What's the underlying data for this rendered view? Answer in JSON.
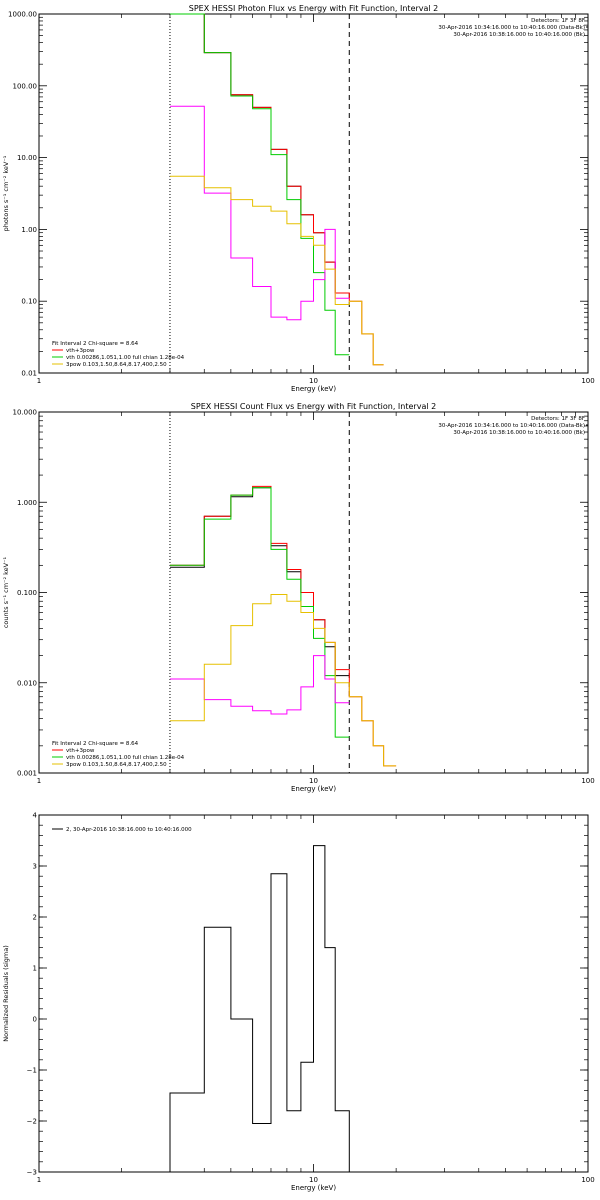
{
  "chart_data": [
    {
      "type": "line",
      "title": "SPEX HESSI Photon Flux vs Energy with Fit Function, Interval 2",
      "xlabel": "Energy (keV)",
      "ylabel": "photons s⁻¹ cm⁻² keV⁻¹",
      "xscale": "log",
      "yscale": "log",
      "xlim": [
        1,
        100
      ],
      "ylim": [
        0.01,
        1000
      ],
      "x_ticks": [
        1,
        10,
        100
      ],
      "x_tick_labels": [
        "1",
        "10",
        "100"
      ],
      "y_ticks": [
        0.01,
        0.1,
        1,
        10,
        100,
        1000
      ],
      "y_tick_labels": [
        "0.01",
        "0.10",
        "1.00",
        "10.00",
        "100.00",
        "1000.00"
      ],
      "top_right_text": [
        "Detectors: 1F 3F 8F",
        "30-Apr-2016 10:34:16.000 to 10:40:16.000 (Data-Bk)",
        "30-Apr-2016 10:38:16.000 to 10:40:16.000 (Bk)"
      ],
      "legend_header": "Fit Interval 2  Chi-square = 8.64",
      "legend": [
        "vth+3pow",
        "vth 0.00286,1.051,1.00  full chian 1.28e-04",
        "3pow 0.103,1.50,8.64,8.17,400,2.50"
      ],
      "vlines": [
        {
          "x": 3.0,
          "style": "dotted"
        },
        {
          "x": 13.5,
          "style": "dashed"
        }
      ],
      "edges": [
        3.0,
        4.0,
        5.0,
        6.0,
        7.0,
        8.0,
        9.0,
        10.0,
        11.0,
        12.0,
        13.5,
        15.0,
        16.5,
        18.0
      ],
      "series": [
        {
          "color": "#000000",
          "values": [
            1000,
            290,
            75,
            50,
            13,
            4.0,
            1.6,
            0.9,
            0.35,
            0.13,
            null,
            null,
            null
          ]
        },
        {
          "color": "#ff0000",
          "values": [
            1000,
            290,
            75,
            50,
            13,
            4.0,
            1.6,
            0.9,
            0.35,
            0.13,
            0.1,
            0.035,
            0.013
          ]
        },
        {
          "color": "#00cc00",
          "values": [
            1000,
            290,
            72,
            48,
            11,
            2.6,
            0.75,
            0.25,
            0.075,
            0.018,
            null,
            null,
            null
          ]
        },
        {
          "color": "#ff00ff",
          "values": [
            52,
            3.2,
            0.4,
            0.16,
            0.06,
            0.055,
            0.1,
            0.2,
            1.0,
            0.11,
            null,
            null,
            null
          ]
        },
        {
          "color": "#e6c000",
          "values": [
            5.5,
            3.8,
            2.6,
            2.1,
            1.8,
            1.2,
            0.8,
            0.6,
            0.28,
            0.09,
            0.1,
            0.035,
            0.013
          ]
        }
      ]
    },
    {
      "type": "line",
      "title": "SPEX HESSI Count Flux vs Energy with Fit Function, Interval 2",
      "xlabel": "Energy (keV)",
      "ylabel": "counts s⁻¹ cm⁻² keV⁻¹",
      "xscale": "log",
      "yscale": "log",
      "xlim": [
        1,
        100
      ],
      "ylim": [
        0.001,
        10
      ],
      "x_ticks": [
        1,
        10,
        100
      ],
      "x_tick_labels": [
        "1",
        "10",
        "100"
      ],
      "y_ticks": [
        0.001,
        0.01,
        0.1,
        1,
        10
      ],
      "y_tick_labels": [
        "0.001",
        "0.010",
        "0.100",
        "1.000",
        "10.000"
      ],
      "top_right_text": [
        "Detectors: 1F 3F 8F",
        "30-Apr-2016 10:34:16.000 to 10:40:16.000 (Data-Bk)",
        "30-Apr-2016 10:38:16.000 to 10:40:16.000 (Bk)"
      ],
      "legend_header": "Fit Interval 2  Chi-square = 8.64",
      "legend": [
        "vth+3pow",
        "vth 0.00286,1.051,1.00  full chian 1.28e-04",
        "3pow 0.103,1.50,8.64,8.17,400,2.50"
      ],
      "vlines": [
        {
          "x": 3.0,
          "style": "dotted"
        },
        {
          "x": 13.5,
          "style": "dashed"
        }
      ],
      "edges": [
        3.0,
        4.0,
        5.0,
        6.0,
        7.0,
        8.0,
        9.0,
        10.0,
        11.0,
        12.0,
        13.5,
        15.0,
        16.5,
        18.0,
        20.0
      ],
      "series": [
        {
          "color": "#000000",
          "values": [
            0.19,
            0.7,
            1.15,
            1.45,
            0.33,
            0.17,
            0.1,
            0.05,
            0.025,
            0.012,
            null,
            null,
            null,
            null
          ]
        },
        {
          "color": "#ff0000",
          "values": [
            0.2,
            0.7,
            1.2,
            1.5,
            0.35,
            0.18,
            0.1,
            0.05,
            0.028,
            0.014,
            0.007,
            0.0038,
            0.002,
            0.0012
          ]
        },
        {
          "color": "#00cc00",
          "values": [
            0.2,
            0.65,
            1.2,
            1.45,
            0.3,
            0.14,
            0.07,
            0.031,
            0.012,
            0.0025,
            null,
            null,
            null,
            null
          ]
        },
        {
          "color": "#ff00ff",
          "values": [
            0.011,
            0.0065,
            0.0055,
            0.0049,
            0.0045,
            0.005,
            0.009,
            0.02,
            0.011,
            0.006,
            null,
            null,
            null,
            null
          ]
        },
        {
          "color": "#e6c000",
          "values": [
            0.0038,
            0.016,
            0.043,
            0.075,
            0.095,
            0.08,
            0.06,
            0.04,
            0.028,
            0.01,
            0.007,
            0.0038,
            0.002,
            0.0012
          ]
        }
      ]
    },
    {
      "type": "line",
      "title": "",
      "xlabel": "Energy (keV)",
      "ylabel": "Normalized Residuals (sigma)",
      "xscale": "log",
      "xlim": [
        1,
        100
      ],
      "ylim": [
        -3,
        4
      ],
      "x_ticks": [
        1,
        10,
        100
      ],
      "x_tick_labels": [
        "1",
        "10",
        "100"
      ],
      "y_ticks": [
        -3,
        -2,
        -1,
        0,
        1,
        2,
        3,
        4
      ],
      "y_tick_labels": [
        "−3",
        "−2",
        "−1",
        "0",
        "1",
        "2",
        "3",
        "4"
      ],
      "legend": [
        "2, 30-Apr-2016 10:38:16.000 to 10:40:16.000"
      ],
      "edges": [
        3.0,
        4.0,
        5.0,
        6.0,
        7.0,
        8.0,
        9.0,
        10.0,
        11.0,
        12.0,
        13.5
      ],
      "series": [
        {
          "color": "#000000",
          "values": [
            -1.45,
            1.8,
            0.0,
            -2.05,
            2.85,
            -1.8,
            -0.85,
            3.4,
            1.4,
            -1.8
          ]
        }
      ]
    }
  ]
}
